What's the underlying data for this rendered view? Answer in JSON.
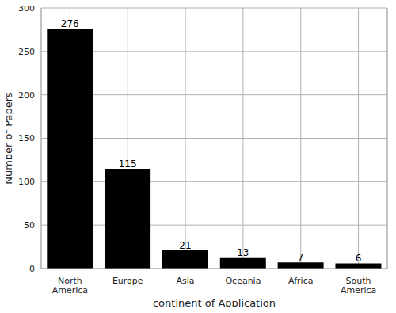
{
  "chart_data": {
    "type": "bar",
    "categories": [
      "North America",
      "Europe",
      "Asia",
      "Oceania",
      "Africa",
      "South America"
    ],
    "values": [
      276,
      115,
      21,
      13,
      7,
      6
    ],
    "color": "#000000",
    "xlabel": "continent of Application",
    "ylabel": "Number of Papers",
    "ylim": [
      0,
      300
    ],
    "yticks": [
      0,
      50,
      100,
      150,
      200,
      250,
      300
    ],
    "grid": true,
    "data_labels": true
  }
}
